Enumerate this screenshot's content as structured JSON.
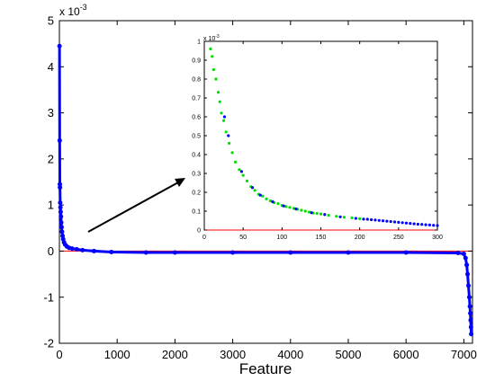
{
  "chart_data": [
    {
      "type": "scatter",
      "xlabel": "Feature",
      "ylabel": "",
      "exponent_label": "x 10",
      "exponent_power": "-3",
      "xlim": [
        0,
        7150
      ],
      "ylim": [
        -2,
        5
      ],
      "xticks": [
        0,
        1000,
        2000,
        3000,
        4000,
        5000,
        6000,
        7000
      ],
      "yticks": [
        -2,
        -1,
        0,
        1,
        2,
        3,
        4,
        5
      ],
      "xtick_labels": [
        "0",
        "1000",
        "2000",
        "3000",
        "4000",
        "5000",
        "6000",
        "7000"
      ],
      "ytick_labels": [
        "-2",
        "-1",
        "0",
        "1",
        "2",
        "3",
        "4",
        "5"
      ],
      "reference_line": {
        "y": 0,
        "color": "#ff0000"
      },
      "grid": false,
      "series": [
        {
          "color": "#0000ff",
          "points": [
            [
              2,
              4.45
            ],
            [
              5,
              2.4
            ],
            [
              8,
              1.45
            ],
            [
              10,
              1.38
            ],
            [
              14,
              1.05
            ],
            [
              18,
              0.95
            ],
            [
              22,
              0.85
            ],
            [
              27,
              0.75
            ],
            [
              32,
              0.62
            ],
            [
              38,
              0.52
            ],
            [
              45,
              0.42
            ],
            [
              55,
              0.33
            ],
            [
              65,
              0.26
            ],
            [
              80,
              0.19
            ],
            [
              100,
              0.14
            ],
            [
              130,
              0.1
            ],
            [
              170,
              0.07
            ],
            [
              220,
              0.055
            ],
            [
              300,
              0.04
            ],
            [
              400,
              0.02
            ],
            [
              600,
              0.0
            ],
            [
              900,
              -0.02
            ],
            [
              1500,
              -0.03
            ],
            [
              2000,
              -0.03
            ],
            [
              3000,
              -0.03
            ],
            [
              4000,
              -0.03
            ],
            [
              5000,
              -0.03
            ],
            [
              6000,
              -0.03
            ],
            [
              6900,
              -0.04
            ],
            [
              7000,
              -0.06
            ],
            [
              7030,
              -0.15
            ],
            [
              7050,
              -0.3
            ],
            [
              7065,
              -0.5
            ],
            [
              7080,
              -0.75
            ],
            [
              7095,
              -1.0
            ],
            [
              7105,
              -1.2
            ],
            [
              7112,
              -1.35
            ],
            [
              7118,
              -1.5
            ],
            [
              7124,
              -1.65
            ],
            [
              7128,
              -1.8
            ]
          ]
        }
      ]
    },
    {
      "type": "scatter",
      "inset": true,
      "exponent_label": "x 10",
      "exponent_power": "-3",
      "xlim": [
        0,
        300
      ],
      "ylim": [
        0,
        1
      ],
      "xticks": [
        0,
        50,
        100,
        150,
        200,
        250,
        300
      ],
      "yticks": [
        0,
        0.1,
        0.2,
        0.3,
        0.4,
        0.5,
        0.6,
        0.7,
        0.8,
        0.9,
        1
      ],
      "xtick_labels": [
        "0",
        "50",
        "100",
        "150",
        "200",
        "250",
        "300"
      ],
      "ytick_labels": [
        "0",
        "0.1",
        "0.2",
        "0.3",
        "0.4",
        "0.5",
        "0.6",
        "0.7",
        "0.8",
        "0.9",
        "1"
      ],
      "reference_line": {
        "y": 0,
        "color": "#ff0000"
      },
      "grid": false,
      "series": [
        {
          "color": "#00e000",
          "points": [
            [
              8,
              0.96
            ],
            [
              10,
              0.92
            ],
            [
              12,
              0.85
            ],
            [
              15,
              0.8
            ],
            [
              18,
              0.73
            ],
            [
              20,
              0.68
            ],
            [
              22,
              0.62
            ],
            [
              25,
              0.58
            ],
            [
              28,
              0.52
            ],
            [
              32,
              0.46
            ],
            [
              36,
              0.41
            ],
            [
              40,
              0.36
            ],
            [
              45,
              0.32
            ],
            [
              50,
              0.29
            ],
            [
              55,
              0.26
            ],
            [
              60,
              0.23
            ],
            [
              65,
              0.21
            ],
            [
              70,
              0.19
            ],
            [
              75,
              0.18
            ],
            [
              80,
              0.165
            ],
            [
              85,
              0.155
            ],
            [
              90,
              0.145
            ],
            [
              95,
              0.14
            ],
            [
              100,
              0.13
            ],
            [
              105,
              0.125
            ],
            [
              110,
              0.12
            ],
            [
              115,
              0.115
            ],
            [
              120,
              0.11
            ],
            [
              125,
              0.105
            ],
            [
              130,
              0.1
            ],
            [
              135,
              0.095
            ],
            [
              140,
              0.09
            ],
            [
              145,
              0.088
            ],
            [
              150,
              0.085
            ],
            [
              160,
              0.078
            ],
            [
              170,
              0.073
            ],
            [
              180,
              0.068
            ],
            [
              190,
              0.065
            ],
            [
              200,
              0.06
            ]
          ]
        },
        {
          "color": "#0000ff",
          "points": [
            [
              26,
              0.6
            ],
            [
              31,
              0.5
            ],
            [
              48,
              0.31
            ],
            [
              62,
              0.225
            ],
            [
              72,
              0.185
            ],
            [
              88,
              0.15
            ],
            [
              102,
              0.128
            ],
            [
              118,
              0.112
            ],
            [
              138,
              0.092
            ],
            [
              155,
              0.082
            ],
            [
              175,
              0.07
            ],
            [
              195,
              0.062
            ],
            [
              205,
              0.058
            ],
            [
              210,
              0.057
            ],
            [
              215,
              0.055
            ],
            [
              220,
              0.053
            ],
            [
              225,
              0.051
            ],
            [
              230,
              0.049
            ],
            [
              235,
              0.047
            ],
            [
              240,
              0.045
            ],
            [
              245,
              0.043
            ],
            [
              250,
              0.041
            ],
            [
              255,
              0.039
            ],
            [
              260,
              0.037
            ],
            [
              265,
              0.035
            ],
            [
              270,
              0.033
            ],
            [
              275,
              0.031
            ],
            [
              280,
              0.03
            ],
            [
              285,
              0.028
            ],
            [
              290,
              0.027
            ],
            [
              295,
              0.025
            ],
            [
              300,
              0.024
            ]
          ]
        }
      ]
    }
  ]
}
